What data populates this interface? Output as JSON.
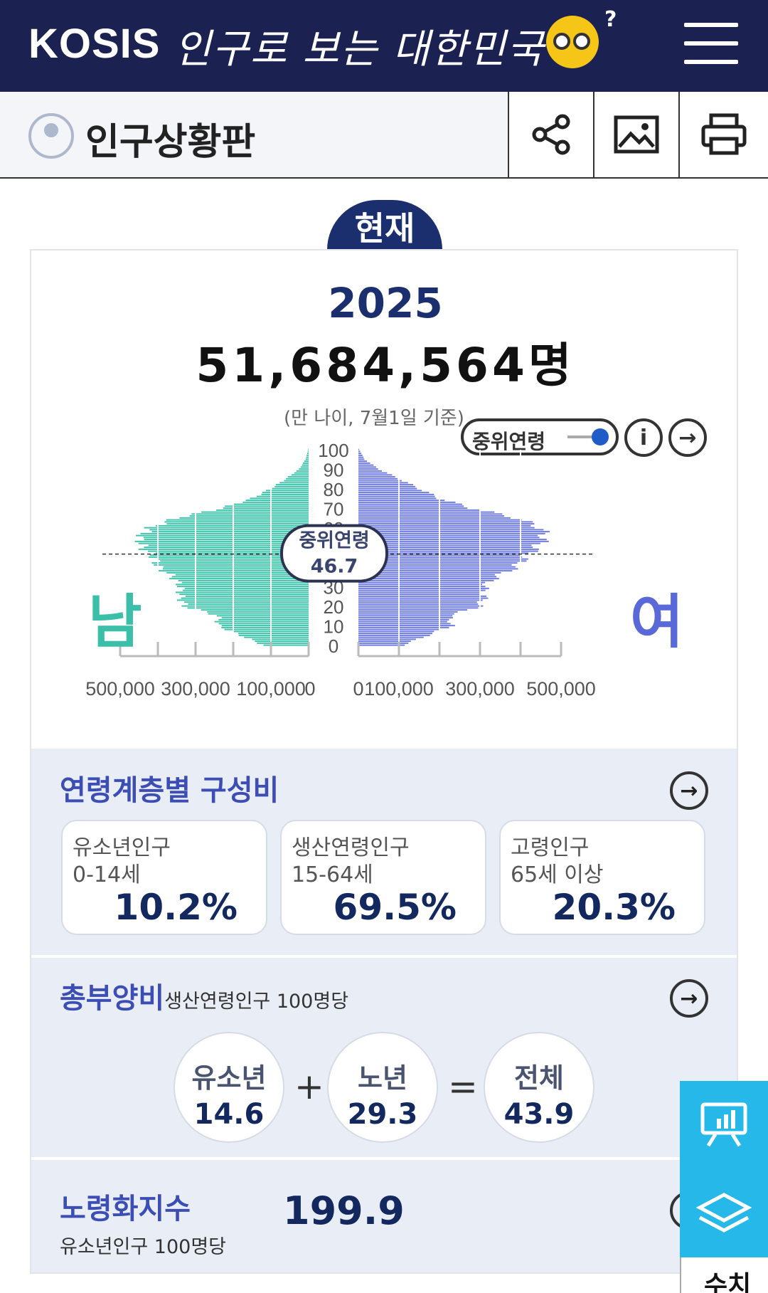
{
  "header": {
    "logo": "KOSIS",
    "subtitle": "인구로 보는 대한민국",
    "mascot_mark": "?"
  },
  "subheader": {
    "title": "인구상황판"
  },
  "tabs": {
    "current": "현재"
  },
  "summary": {
    "year": "2025",
    "total_population": "51,684,564명",
    "basis": "(만 나이, 7월1일 기준)"
  },
  "median_toggle": {
    "label": "중위연령"
  },
  "median_badge": {
    "label": "중위연령",
    "value": "46.7"
  },
  "pyramid_labels": {
    "male": "남",
    "female": "여"
  },
  "chart_data": {
    "type": "bar",
    "title": "",
    "orientation": "horizontal-population-pyramid",
    "y_ticks": [
      "0",
      "10",
      "20",
      "30",
      "40",
      "50",
      "60",
      "70",
      "80",
      "90",
      "100"
    ],
    "x_ticks_left": [
      "500,000",
      "300,000",
      "100,000",
      "0"
    ],
    "x_ticks_right": [
      "0",
      "100,000",
      "300,000",
      "500,000"
    ],
    "xlim": [
      0,
      500000
    ],
    "ylim": [
      0,
      100
    ],
    "grid": true,
    "median_age": 46.7,
    "series": [
      {
        "name": "남",
        "color": "#3fc4ac",
        "ages": [
          0,
          5,
          10,
          15,
          20,
          25,
          30,
          35,
          40,
          45,
          50,
          55,
          60,
          65,
          70,
          75,
          80,
          85,
          90,
          95,
          100
        ],
        "values": [
          120000,
          180000,
          240000,
          240000,
          330000,
          340000,
          340000,
          360000,
          400000,
          410000,
          440000,
          450000,
          420000,
          350000,
          230000,
          150000,
          100000,
          60000,
          25000,
          8000,
          1000
        ]
      },
      {
        "name": "여",
        "color": "#6f7ce0",
        "ages": [
          0,
          5,
          10,
          15,
          20,
          25,
          30,
          35,
          40,
          45,
          50,
          55,
          60,
          65,
          70,
          75,
          80,
          85,
          90,
          95,
          100
        ],
        "values": [
          110000,
          170000,
          230000,
          225000,
          300000,
          310000,
          310000,
          340000,
          390000,
          410000,
          440000,
          460000,
          450000,
          390000,
          280000,
          200000,
          150000,
          100000,
          50000,
          15000,
          2000
        ]
      }
    ]
  },
  "age_structure": {
    "title": "연령계층별 구성비",
    "groups": [
      {
        "name": "유소년인구",
        "range": "0-14세",
        "value": "10.2%"
      },
      {
        "name": "생산연령인구",
        "range": "15-64세",
        "value": "69.5%"
      },
      {
        "name": "고령인구",
        "range": "65세 이상",
        "value": "20.3%"
      }
    ]
  },
  "dependency": {
    "title": "총부양비",
    "note": "생산연령인구 100명당",
    "youth_label": "유소년",
    "youth_value": "14.6",
    "elderly_label": "노년",
    "elderly_value": "29.3",
    "total_label": "전체",
    "total_value": "43.9",
    "plus": "+",
    "equals": "="
  },
  "aging_index": {
    "title": "노령화지수",
    "note": "유소년인구 100명당",
    "value": "199.9"
  },
  "side_panel": {
    "bottom_label": "수치"
  },
  "colors": {
    "navy": "#1b2150",
    "accent_blue": "#3c4db4",
    "male": "#3fc4ac",
    "female": "#6f7ce0",
    "side": "#27b8ea"
  }
}
